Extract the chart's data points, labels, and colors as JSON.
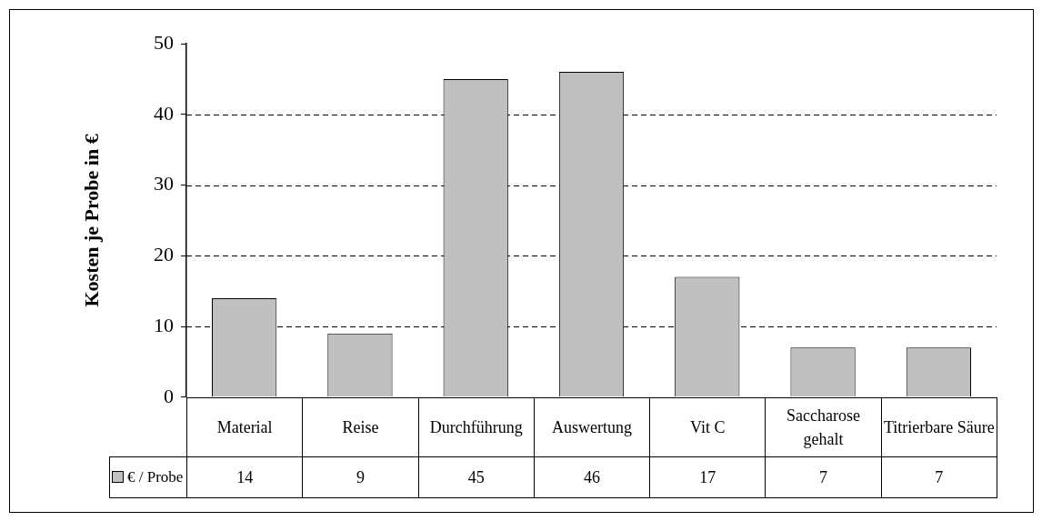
{
  "chart_data": {
    "type": "bar",
    "ylabel": "Kosten je Probe in €",
    "categories": [
      "Material",
      "Reise",
      "Durchführung",
      "Auswertung",
      "Vit C",
      "Saccharose gehalt",
      "Titrierbare Säure"
    ],
    "series": [
      {
        "name": "€ / Probe",
        "color": "#c0c0c0",
        "values": [
          14,
          9,
          45,
          46,
          17,
          7,
          7
        ]
      }
    ],
    "ylim": [
      0,
      50
    ],
    "yticks": [
      0,
      10,
      20,
      30,
      40,
      50
    ],
    "grid": "y",
    "data_labels": true,
    "legend": "bottom"
  }
}
